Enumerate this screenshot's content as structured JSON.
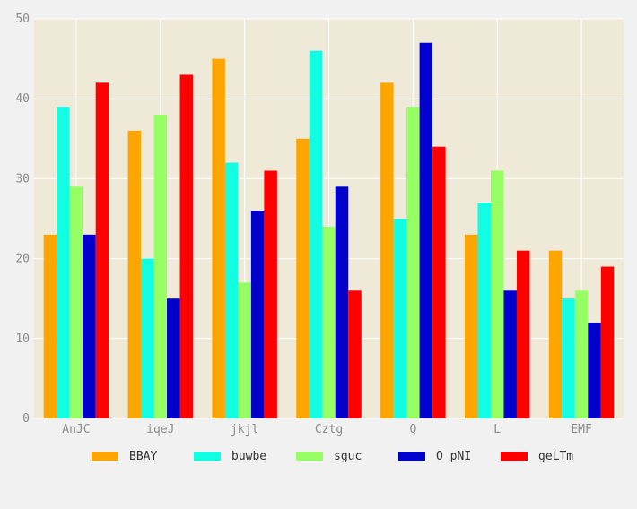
{
  "chart_data": {
    "type": "bar",
    "categories": [
      "AnJC",
      "iqeJ",
      "jkjl",
      "Cztg",
      "Q",
      "L",
      "EMF"
    ],
    "series": [
      {
        "name": "BBAY",
        "color": "#ffa500",
        "values": [
          23,
          36,
          45,
          35,
          42,
          23,
          21
        ]
      },
      {
        "name": "buwbe",
        "color": "#12fee2",
        "values": [
          39,
          20,
          32,
          46,
          25,
          27,
          15
        ]
      },
      {
        "name": "sguc",
        "color": "#96ff64",
        "values": [
          29,
          38,
          17,
          24,
          39,
          31,
          16
        ]
      },
      {
        "name": "O pNI",
        "color": "#0000cd",
        "values": [
          23,
          15,
          26,
          29,
          47,
          16,
          12
        ]
      },
      {
        "name": "geLTm",
        "color": "#ff0000",
        "values": [
          42,
          43,
          31,
          16,
          34,
          21,
          19
        ]
      }
    ],
    "ylim": [
      0,
      50
    ],
    "yticks": [
      0,
      10,
      20,
      30,
      40,
      50
    ],
    "grid": true,
    "legend_position": "bottom",
    "plot_background": "#efe9d8",
    "grid_color": "#ffffff"
  }
}
